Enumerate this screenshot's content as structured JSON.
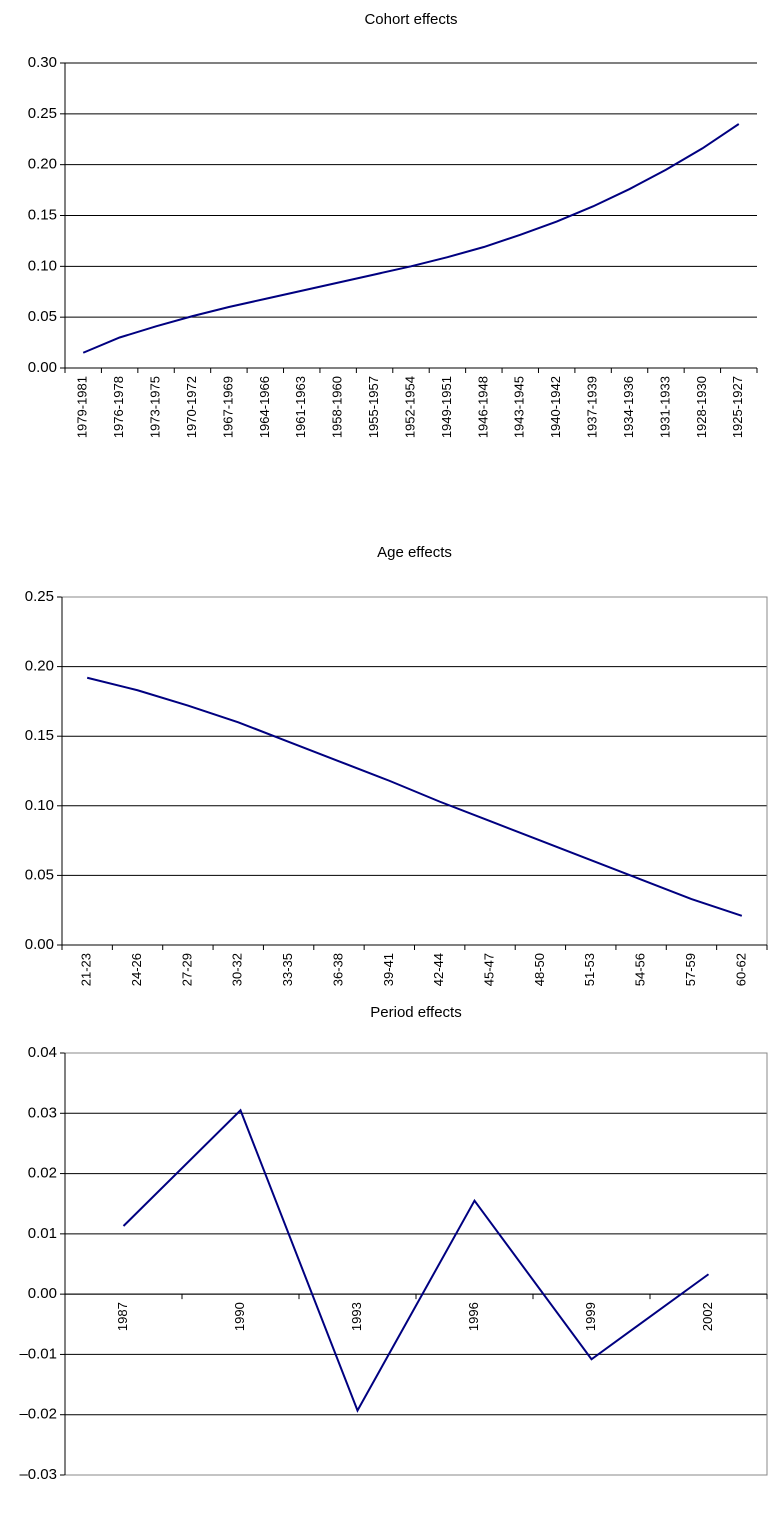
{
  "chart_data": [
    {
      "type": "line",
      "title": "Cohort effects",
      "categories": [
        "1979-1981",
        "1976-1978",
        "1973-1975",
        "1970-1972",
        "1967-1969",
        "1964-1966",
        "1961-1963",
        "1958-1960",
        "1955-1957",
        "1952-1954",
        "1949-1951",
        "1946-1948",
        "1943-1945",
        "1940-1942",
        "1937-1939",
        "1934-1936",
        "1931-1933",
        "1928-1930",
        "1925-1927"
      ],
      "values": [
        0.015,
        0.03,
        0.041,
        0.051,
        0.06,
        0.068,
        0.076,
        0.084,
        0.092,
        0.1,
        0.109,
        0.119,
        0.131,
        0.144,
        0.159,
        0.176,
        0.195,
        0.216,
        0.24
      ],
      "color": "#000080",
      "ylim": [
        0,
        0.3
      ],
      "yticks": [
        {
          "value": 0,
          "label": "0.00"
        },
        {
          "value": 0.05,
          "label": "0.05"
        },
        {
          "value": 0.1,
          "label": "0.10"
        },
        {
          "value": 0.15,
          "label": "0.15"
        },
        {
          "value": 0.2,
          "label": "0.20"
        },
        {
          "value": 0.25,
          "label": "0.25"
        },
        {
          "value": 0.3,
          "label": "0.30"
        }
      ],
      "grid": true,
      "border": false
    },
    {
      "type": "line",
      "title": "Age effects",
      "categories": [
        "21-23",
        "24-26",
        "27-29",
        "30-32",
        "33-35",
        "36-38",
        "39-41",
        "42-44",
        "45-47",
        "48-50",
        "51-53",
        "54-56",
        "57-59",
        "60-62"
      ],
      "values": [
        0.192,
        0.183,
        0.172,
        0.16,
        0.146,
        0.132,
        0.118,
        0.103,
        0.089,
        0.075,
        0.061,
        0.047,
        0.033,
        0.021
      ],
      "color": "#000080",
      "ylim": [
        0,
        0.25
      ],
      "yticks": [
        {
          "value": 0,
          "label": "0.00"
        },
        {
          "value": 0.05,
          "label": "0.05"
        },
        {
          "value": 0.1,
          "label": "0.10"
        },
        {
          "value": 0.15,
          "label": "0.15"
        },
        {
          "value": 0.2,
          "label": "0.20"
        },
        {
          "value": 0.25,
          "label": "0.25"
        }
      ],
      "grid": true,
      "border": true
    },
    {
      "type": "line",
      "title": "Period effects",
      "categories": [
        "1987",
        "1990",
        "1993",
        "1996",
        "1999",
        "2002"
      ],
      "values": [
        0.0113,
        0.0305,
        -0.0193,
        0.0155,
        -0.0108,
        0.0033
      ],
      "color": "#000080",
      "ylim": [
        -0.03,
        0.04
      ],
      "yticks": [
        {
          "value": -0.03,
          "label": "–0.03"
        },
        {
          "value": -0.02,
          "label": "–0.02"
        },
        {
          "value": -0.01,
          "label": "–0.01"
        },
        {
          "value": 0,
          "label": "0.00"
        },
        {
          "value": 0.01,
          "label": "0.01"
        },
        {
          "value": 0.02,
          "label": "0.02"
        },
        {
          "value": 0.03,
          "label": "0.03"
        },
        {
          "value": 0.04,
          "label": "0.04"
        }
      ],
      "grid": true,
      "border": true
    }
  ]
}
